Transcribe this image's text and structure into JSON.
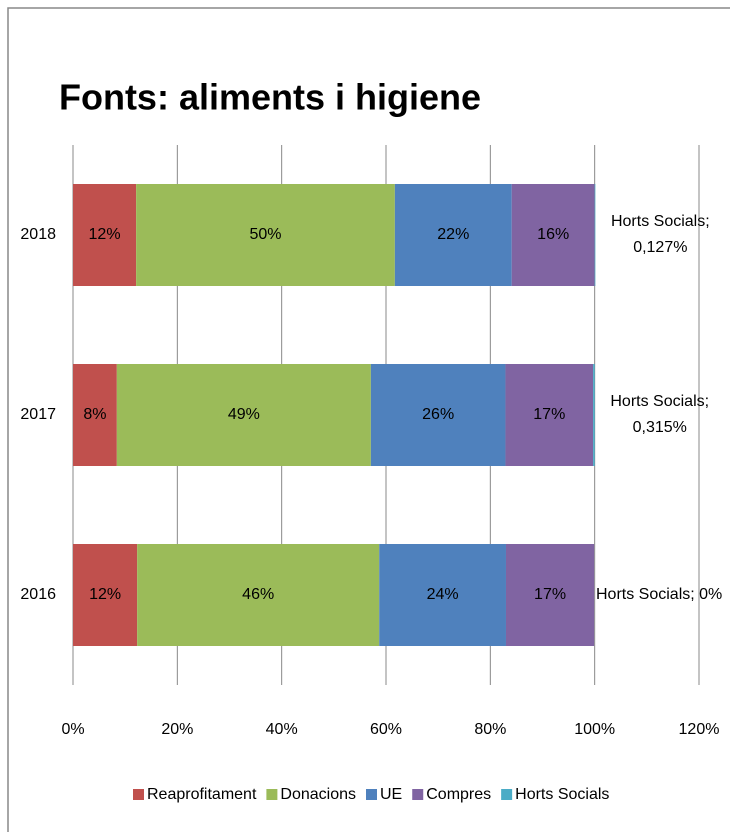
{
  "chart_data": {
    "type": "stacked_bar_horizontal",
    "title": "Fonts: aliments i higiene",
    "categories": [
      "2016",
      "2017",
      "2018"
    ],
    "series": [
      {
        "name": "Reaprofitament",
        "color": "#c0504d",
        "values": [
          12.3,
          8.4,
          12.1
        ],
        "value_labels": [
          "12%",
          "8%",
          "12%"
        ]
      },
      {
        "name": "Donacions",
        "color": "#9bbb59",
        "values": [
          46.4,
          48.7,
          49.6
        ],
        "value_labels": [
          "46%",
          "49%",
          "50%"
        ]
      },
      {
        "name": "UE",
        "color": "#4f81bd",
        "values": [
          24.3,
          25.8,
          22.4
        ],
        "value_labels": [
          "24%",
          "26%",
          "22%"
        ]
      },
      {
        "name": "Compres",
        "color": "#8064a2",
        "values": [
          16.9,
          16.8,
          15.9
        ],
        "value_labels": [
          "17%",
          "17%",
          "16%"
        ]
      },
      {
        "name": "Horts Socials",
        "color": "#4bacc6",
        "values": [
          0,
          0.315,
          0.127
        ],
        "value_labels": [
          "Horts Socials; 0%",
          "Horts Socials; 0,315%",
          "Horts Socials; 0,127%"
        ]
      }
    ],
    "xlim": [
      0,
      120
    ],
    "xticks": [
      {
        "value": 0,
        "label": "0%"
      },
      {
        "value": 20,
        "label": "20%"
      },
      {
        "value": 40,
        "label": "40%"
      },
      {
        "value": 60,
        "label": "60%"
      },
      {
        "value": 80,
        "label": "80%"
      },
      {
        "value": 100,
        "label": "100%"
      },
      {
        "value": 120,
        "label": "120%"
      }
    ],
    "grid": true,
    "legend": "bottom"
  }
}
